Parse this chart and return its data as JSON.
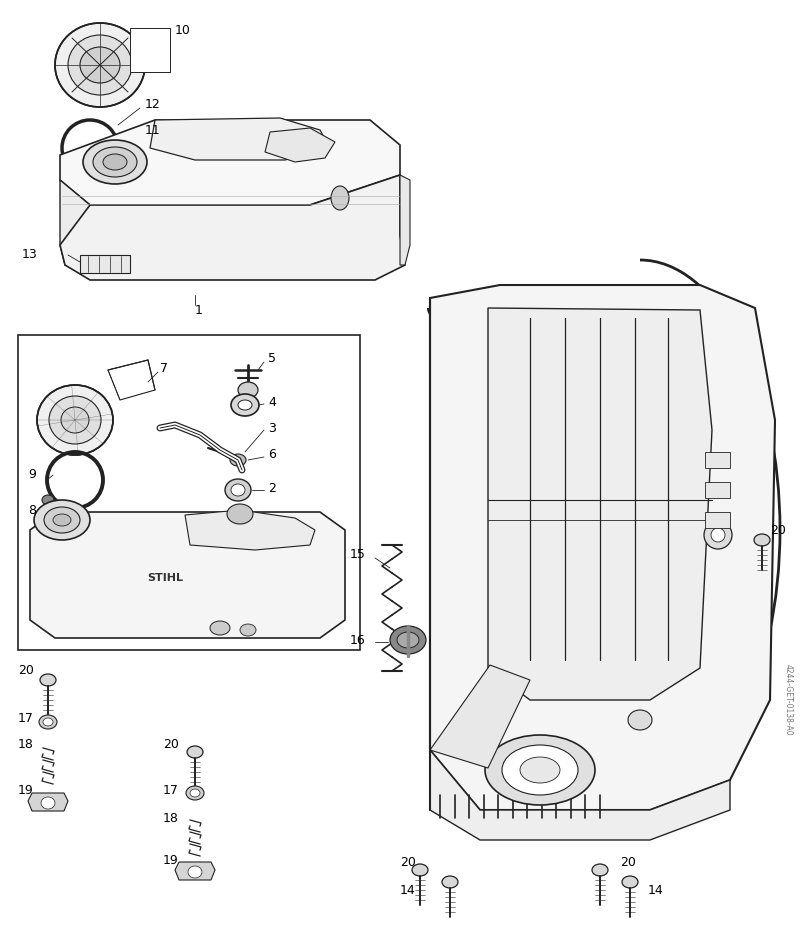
{
  "bg_color": "#ffffff",
  "line_color": "#222222",
  "fig_width": 8.0,
  "fig_height": 9.36,
  "dpi": 100,
  "font_size_label": 9,
  "watermark": "4244-GET-0138-A0"
}
